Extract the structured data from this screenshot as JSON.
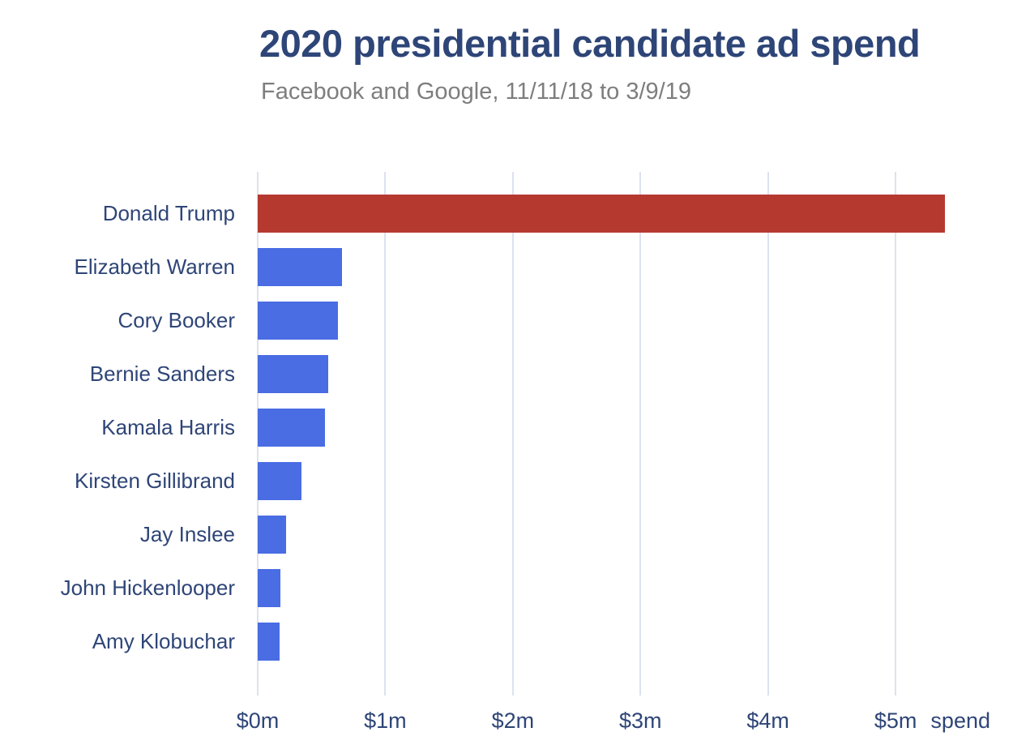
{
  "header": {
    "title": "2020 presidential candidate ad spend",
    "subtitle": "Facebook and Google, 11/11/18 to 3/9/19"
  },
  "chart_data": {
    "type": "bar",
    "orientation": "horizontal",
    "title": "2020 presidential candidate ad spend",
    "subtitle": "Facebook and Google, 11/11/18 to 3/9/19",
    "categories": [
      "Donald Trump",
      "Elizabeth Warren",
      "Cory Booker",
      "Bernie Sanders",
      "Kamala Harris",
      "Kirsten Gillibrand",
      "Jay Inslee",
      "John Hickenlooper",
      "Amy Klobuchar"
    ],
    "values_millions": [
      5.39,
      0.66,
      0.63,
      0.55,
      0.53,
      0.34,
      0.22,
      0.18,
      0.17
    ],
    "unit": "$m",
    "xlabel": "spend",
    "xlim": [
      0,
      5.73
    ],
    "x_ticks": [
      {
        "value": 0,
        "label": "$0m"
      },
      {
        "value": 1,
        "label": "$1m"
      },
      {
        "value": 2,
        "label": "$2m"
      },
      {
        "value": 3,
        "label": "$3m"
      },
      {
        "value": 4,
        "label": "$4m"
      },
      {
        "value": 5,
        "label": "$5m"
      }
    ],
    "x_axis_suffix": "spend",
    "grid": true,
    "legend": false,
    "bar_colors": [
      "#b6392f",
      "#4a6de4",
      "#4a6de4",
      "#4a6de4",
      "#4a6de4",
      "#4a6de4",
      "#4a6de4",
      "#4a6de4",
      "#4a6de4"
    ],
    "colors": {
      "highlight_bar": "#b6392f",
      "default_bar": "#4a6de4",
      "title_text": "#2e4577",
      "subtitle_text": "#7e7e7e",
      "axis_text": "#2e4577",
      "gridline": "#dde2ee",
      "background": "#ffffff"
    }
  }
}
